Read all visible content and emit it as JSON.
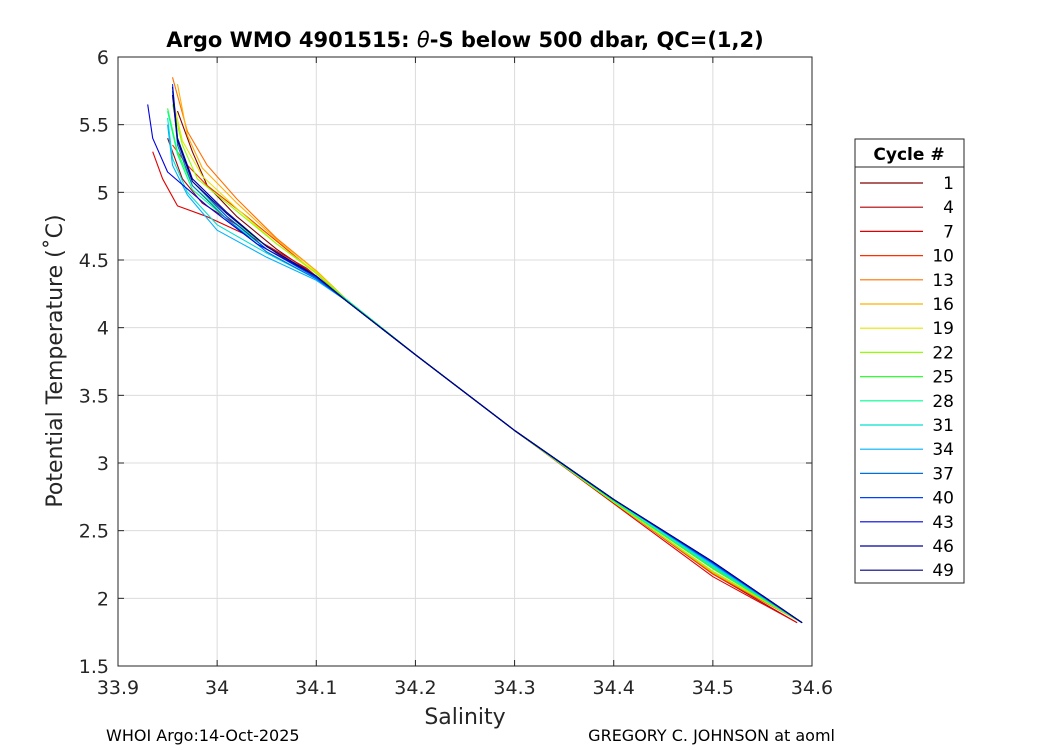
{
  "chart_data": {
    "type": "line",
    "title_prefix": "Argo WMO 4901515: ",
    "title_theta": "θ",
    "title_suffix": "-S below 500 dbar,  QC=(1,2)",
    "xlabel": "Salinity",
    "ylabel": "Potential Temperature (˚C)",
    "xlim": [
      33.9,
      34.6
    ],
    "ylim": [
      1.5,
      6
    ],
    "xticks": [
      "33.9",
      "34",
      "34.1",
      "34.2",
      "34.3",
      "34.4",
      "34.5",
      "34.6"
    ],
    "yticks": [
      "1.5",
      "2",
      "2.5",
      "3",
      "3.5",
      "4",
      "4.5",
      "5",
      "5.5",
      "6"
    ],
    "grid": true,
    "legend_title": "Cycle #",
    "legend_position": "right-outside",
    "series": [
      {
        "name": "1",
        "color": "#800000",
        "x": [
          33.96,
          33.975,
          33.99,
          34.02,
          34.06,
          34.1,
          34.13,
          34.2,
          34.3,
          34.4,
          34.5,
          34.59
        ],
        "y": [
          5.6,
          5.3,
          5.05,
          4.82,
          4.58,
          4.38,
          4.2,
          3.8,
          3.24,
          2.72,
          2.22,
          1.82
        ]
      },
      {
        "name": "4",
        "color": "#b00000",
        "x": [
          33.95,
          33.965,
          33.985,
          34.02,
          34.06,
          34.1,
          34.13,
          34.2,
          34.3,
          34.4,
          34.5,
          34.585
        ],
        "y": [
          5.4,
          5.1,
          4.92,
          4.76,
          4.55,
          4.37,
          4.2,
          3.8,
          3.24,
          2.71,
          2.18,
          1.82
        ]
      },
      {
        "name": "7",
        "color": "#e00000",
        "x": [
          33.935,
          33.945,
          33.96,
          33.99,
          34.04,
          34.09,
          34.13,
          34.2,
          34.3,
          34.4,
          34.5,
          34.585
        ],
        "y": [
          5.3,
          5.1,
          4.9,
          4.82,
          4.65,
          4.44,
          4.2,
          3.8,
          3.24,
          2.7,
          2.16,
          1.82
        ]
      },
      {
        "name": "10",
        "color": "#ff3000",
        "x": [
          33.955,
          33.97,
          33.99,
          34.03,
          34.07,
          34.1,
          34.13,
          34.2,
          34.3,
          34.4,
          34.5,
          34.59
        ],
        "y": [
          5.35,
          5.2,
          5.05,
          4.82,
          4.58,
          4.4,
          4.2,
          3.8,
          3.24,
          2.71,
          2.18,
          1.82
        ]
      },
      {
        "name": "13",
        "color": "#ff7000",
        "x": [
          33.955,
          33.97,
          33.99,
          34.02,
          34.06,
          34.1,
          34.13,
          34.2,
          34.3,
          34.4,
          34.5,
          34.59
        ],
        "y": [
          5.85,
          5.45,
          5.2,
          4.95,
          4.66,
          4.42,
          4.21,
          3.8,
          3.24,
          2.71,
          2.19,
          1.82
        ]
      },
      {
        "name": "16",
        "color": "#ffb000",
        "x": [
          33.96,
          33.97,
          33.985,
          34.02,
          34.06,
          34.1,
          34.13,
          34.2,
          34.3,
          34.4,
          34.5,
          34.59
        ],
        "y": [
          5.8,
          5.42,
          5.18,
          4.92,
          4.65,
          4.42,
          4.21,
          3.8,
          3.24,
          2.71,
          2.19,
          1.82
        ]
      },
      {
        "name": "19",
        "color": "#e6e600",
        "x": [
          33.955,
          33.965,
          33.985,
          34.02,
          34.06,
          34.1,
          34.13,
          34.2,
          34.3,
          34.4,
          34.5,
          34.59
        ],
        "y": [
          5.7,
          5.38,
          5.12,
          4.88,
          4.62,
          4.41,
          4.21,
          3.8,
          3.24,
          2.71,
          2.2,
          1.82
        ]
      },
      {
        "name": "22",
        "color": "#90ff00",
        "x": [
          33.955,
          33.965,
          33.98,
          34.02,
          34.06,
          34.1,
          34.13,
          34.2,
          34.3,
          34.4,
          34.5,
          34.59
        ],
        "y": [
          5.65,
          5.35,
          5.1,
          4.86,
          4.62,
          4.4,
          4.21,
          3.8,
          3.24,
          2.71,
          2.2,
          1.82
        ]
      },
      {
        "name": "25",
        "color": "#30ff30",
        "x": [
          33.95,
          33.96,
          33.975,
          34.01,
          34.05,
          34.1,
          34.13,
          34.2,
          34.3,
          34.4,
          34.5,
          34.59
        ],
        "y": [
          5.62,
          5.3,
          5.05,
          4.82,
          4.6,
          4.38,
          4.21,
          3.8,
          3.24,
          2.72,
          2.22,
          1.82
        ]
      },
      {
        "name": "28",
        "color": "#00ff90",
        "x": [
          33.95,
          33.96,
          33.975,
          34.01,
          34.05,
          34.1,
          34.13,
          34.2,
          34.3,
          34.4,
          34.5,
          34.59
        ],
        "y": [
          5.6,
          5.28,
          5.02,
          4.8,
          4.58,
          4.37,
          4.21,
          3.8,
          3.24,
          2.72,
          2.23,
          1.82
        ]
      },
      {
        "name": "31",
        "color": "#00e0d0",
        "x": [
          33.95,
          33.955,
          33.97,
          34.0,
          34.05,
          34.1,
          34.13,
          34.2,
          34.3,
          34.4,
          34.5,
          34.59
        ],
        "y": [
          5.55,
          5.25,
          5.0,
          4.76,
          4.55,
          4.36,
          4.2,
          3.8,
          3.24,
          2.73,
          2.24,
          1.82
        ]
      },
      {
        "name": "34",
        "color": "#00b0ff",
        "x": [
          33.95,
          33.955,
          33.97,
          34.0,
          34.05,
          34.1,
          34.13,
          34.2,
          34.3,
          34.4,
          34.5,
          34.59
        ],
        "y": [
          5.5,
          5.2,
          4.98,
          4.72,
          4.52,
          4.35,
          4.2,
          3.8,
          3.24,
          2.73,
          2.25,
          1.82
        ]
      },
      {
        "name": "37",
        "color": "#0070e0",
        "x": [
          33.955,
          33.96,
          33.975,
          34.01,
          34.05,
          34.1,
          34.13,
          34.2,
          34.3,
          34.4,
          34.5,
          34.59
        ],
        "y": [
          5.75,
          5.35,
          5.05,
          4.8,
          4.56,
          4.36,
          4.2,
          3.8,
          3.24,
          2.73,
          2.26,
          1.82
        ]
      },
      {
        "name": "40",
        "color": "#0040ff",
        "x": [
          33.955,
          33.96,
          33.975,
          34.01,
          34.05,
          34.1,
          34.13,
          34.2,
          34.3,
          34.4,
          34.5,
          34.59
        ],
        "y": [
          5.8,
          5.4,
          5.08,
          4.82,
          4.58,
          4.37,
          4.2,
          3.8,
          3.24,
          2.73,
          2.26,
          1.82
        ]
      },
      {
        "name": "43",
        "color": "#0000e0",
        "x": [
          33.93,
          33.935,
          33.95,
          33.99,
          34.04,
          34.1,
          34.13,
          34.2,
          34.3,
          34.4,
          34.5,
          34.59
        ],
        "y": [
          5.65,
          5.4,
          5.15,
          4.9,
          4.62,
          4.38,
          4.2,
          3.8,
          3.24,
          2.73,
          2.27,
          1.82
        ]
      },
      {
        "name": "46",
        "color": "#0000a0",
        "x": [
          33.955,
          33.96,
          33.975,
          34.01,
          34.05,
          34.1,
          34.13,
          34.2,
          34.3,
          34.4,
          34.5,
          34.59
        ],
        "y": [
          5.78,
          5.4,
          5.1,
          4.85,
          4.6,
          4.38,
          4.2,
          3.8,
          3.24,
          2.73,
          2.27,
          1.82
        ]
      },
      {
        "name": "49",
        "color": "#000080",
        "x": [
          33.955,
          33.96,
          33.975,
          34.01,
          34.05,
          34.1,
          34.13,
          34.2,
          34.3,
          34.4,
          34.5,
          34.59
        ],
        "y": [
          5.72,
          5.38,
          5.08,
          4.84,
          4.6,
          4.38,
          4.2,
          3.8,
          3.24,
          2.73,
          2.27,
          1.82
        ]
      }
    ]
  },
  "footer": {
    "left": "WHOI Argo:14-Oct-2025",
    "right": "GREGORY C. JOHNSON at aoml"
  }
}
